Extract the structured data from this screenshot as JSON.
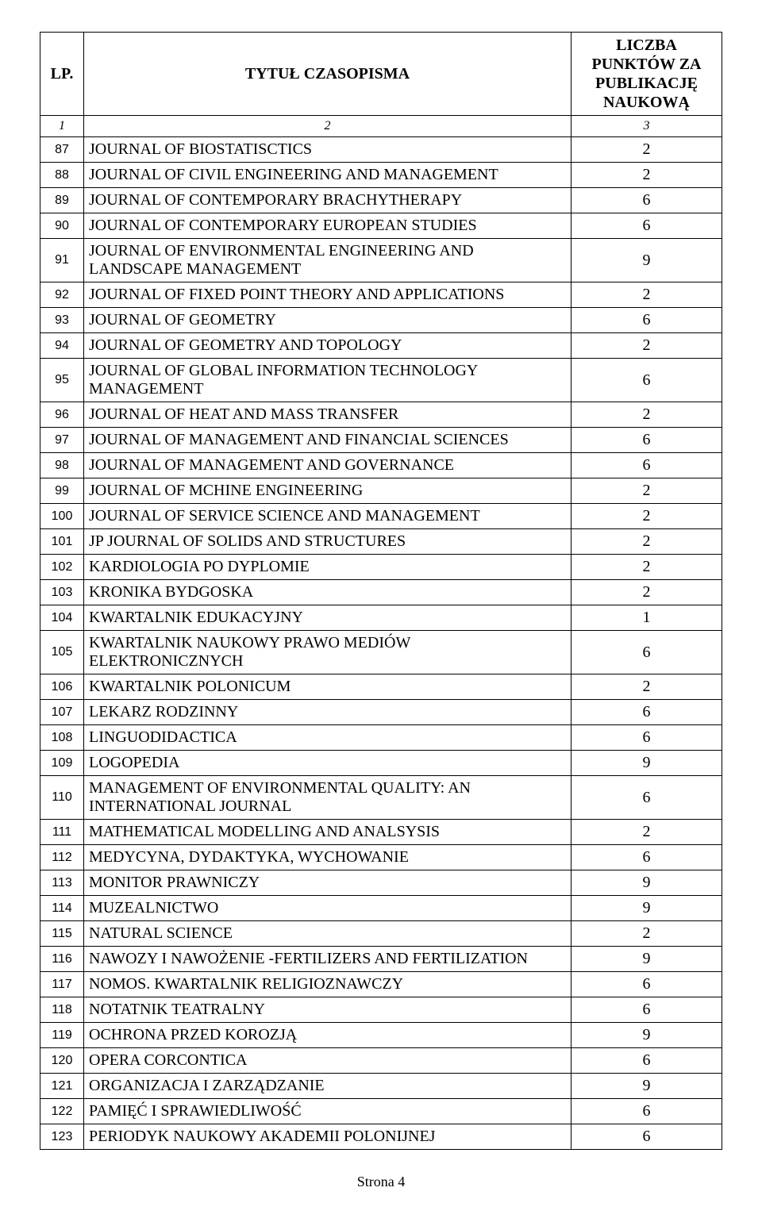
{
  "header": {
    "lp": "LP.",
    "title": "TYTUŁ CZASOPISMA",
    "points": "LICZBA PUNKTÓW ZA PUBLIKACJĘ NAUKOWĄ"
  },
  "subheader": {
    "c1": "1",
    "c2": "2",
    "c3": "3"
  },
  "rows": [
    {
      "lp": "87",
      "title": "JOURNAL OF BIOSTATISCTICS",
      "points": "2"
    },
    {
      "lp": "88",
      "title": "JOURNAL OF CIVIL ENGINEERING AND MANAGEMENT",
      "points": "2"
    },
    {
      "lp": "89",
      "title": "JOURNAL OF CONTEMPORARY BRACHYTHERAPY",
      "points": "6"
    },
    {
      "lp": "90",
      "title": "JOURNAL OF CONTEMPORARY EUROPEAN STUDIES",
      "points": "6"
    },
    {
      "lp": "91",
      "title": "JOURNAL OF ENVIRONMENTAL ENGINEERING AND LANDSCAPE MANAGEMENT",
      "points": "9"
    },
    {
      "lp": "92",
      "title": "JOURNAL OF FIXED POINT THEORY AND APPLICATIONS",
      "points": "2"
    },
    {
      "lp": "93",
      "title": "JOURNAL OF GEOMETRY",
      "points": "6"
    },
    {
      "lp": "94",
      "title": "JOURNAL OF GEOMETRY AND TOPOLOGY",
      "points": "2"
    },
    {
      "lp": "95",
      "title": "JOURNAL OF GLOBAL INFORMATION TECHNOLOGY MANAGEMENT",
      "points": "6"
    },
    {
      "lp": "96",
      "title": "JOURNAL OF HEAT AND MASS TRANSFER",
      "points": "2"
    },
    {
      "lp": "97",
      "title": "JOURNAL OF MANAGEMENT AND FINANCIAL SCIENCES",
      "points": "6"
    },
    {
      "lp": "98",
      "title": "JOURNAL OF MANAGEMENT AND GOVERNANCE",
      "points": "6"
    },
    {
      "lp": "99",
      "title": "JOURNAL OF MCHINE ENGINEERING",
      "points": "2"
    },
    {
      "lp": "100",
      "title": "JOURNAL OF SERVICE SCIENCE AND MANAGEMENT",
      "points": "2"
    },
    {
      "lp": "101",
      "title": "JP JOURNAL OF SOLIDS  AND STRUCTURES",
      "points": "2"
    },
    {
      "lp": "102",
      "title": "KARDIOLOGIA PO DYPLOMIE",
      "points": "2"
    },
    {
      "lp": "103",
      "title": "KRONIKA BYDGOSKA",
      "points": "2"
    },
    {
      "lp": "104",
      "title": "KWARTALNIK EDUKACYJNY",
      "points": "1"
    },
    {
      "lp": "105",
      "title": "KWARTALNIK NAUKOWY PRAWO MEDIÓW ELEKTRONICZNYCH",
      "points": "6"
    },
    {
      "lp": "106",
      "title": "KWARTALNIK POLONICUM",
      "points": "2"
    },
    {
      "lp": "107",
      "title": "LEKARZ RODZINNY",
      "points": "6"
    },
    {
      "lp": "108",
      "title": "LINGUODIDACTICA",
      "points": "6"
    },
    {
      "lp": "109",
      "title": "LOGOPEDIA",
      "points": "9"
    },
    {
      "lp": "110",
      "title": "MANAGEMENT OF ENVIRONMENTAL QUALITY: AN INTERNATIONAL JOURNAL",
      "points": "6"
    },
    {
      "lp": "111",
      "title": "MATHEMATICAL MODELLING AND ANALSYSIS",
      "points": "2"
    },
    {
      "lp": "112",
      "title": "MEDYCYNA, DYDAKTYKA, WYCHOWANIE",
      "points": "6"
    },
    {
      "lp": "113",
      "title": "MONITOR PRAWNICZY",
      "points": "9"
    },
    {
      "lp": "114",
      "title": "MUZEALNICTWO",
      "points": "9"
    },
    {
      "lp": "115",
      "title": "NATURAL SCIENCE",
      "points": "2"
    },
    {
      "lp": "116",
      "title": "NAWOZY I NAWOŻENIE -FERTILIZERS AND FERTILIZATION",
      "points": "9"
    },
    {
      "lp": "117",
      "title": "NOMOS. KWARTALNIK RELIGIOZNAWCZY",
      "points": "6"
    },
    {
      "lp": "118",
      "title": "NOTATNIK TEATRALNY",
      "points": "6"
    },
    {
      "lp": "119",
      "title": "OCHRONA PRZED KOROZJĄ",
      "points": "9"
    },
    {
      "lp": "120",
      "title": "OPERA CORCONTICA",
      "points": "6"
    },
    {
      "lp": "121",
      "title": "ORGANIZACJA I ZARZĄDZANIE",
      "points": "9"
    },
    {
      "lp": "122",
      "title": "PAMIĘĆ I SPRAWIEDLIWOŚĆ",
      "points": "6"
    },
    {
      "lp": "123",
      "title": "PERIODYK NAUKOWY AKADEMII POLONIJNEJ",
      "points": "6"
    }
  ],
  "footer": "Strona 4"
}
